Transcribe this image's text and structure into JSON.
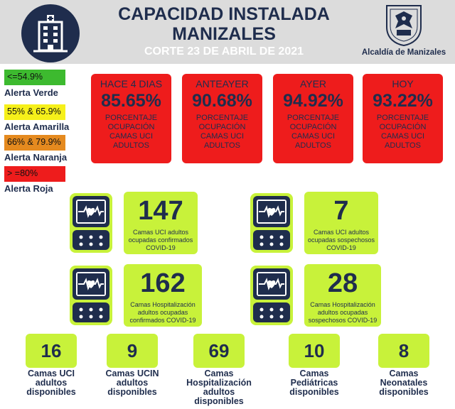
{
  "header": {
    "title_line1": "CAPACIDAD INSTALADA",
    "title_line2": "MANIZALES",
    "subtitle": "CORTE 23  DE ABRIL DE 2021",
    "org": "Alcaldía de Manizales"
  },
  "legend": [
    {
      "range": "<=54.9%",
      "label": "Alerta Verde",
      "color": "#3dba2f"
    },
    {
      "range": "55% & 65.9%",
      "label": "Alerta Amarilla",
      "color": "#f6f01a"
    },
    {
      "range": "66% & 79.9%",
      "label": "Alerta Naranja",
      "color": "#e58a1f"
    },
    {
      "range": "> =80%",
      "label": "Alerta Roja",
      "color": "#ee1c1c"
    }
  ],
  "occupancy": [
    {
      "period": "HACE 4 DIAS",
      "value": "85.65%",
      "line1": "PORCENTAJE",
      "line2": "OCUPACIÓN",
      "line3": "CAMAS UCI",
      "line4": "ADULTOS"
    },
    {
      "period": "ANTEAYER",
      "value": "90.68%",
      "line1": "PORCENTAJE",
      "line2": "OCUPACIÓN",
      "line3": "CAMAS UCI",
      "line4": "ADULTOS"
    },
    {
      "period": "AYER",
      "value": "94.92%",
      "line1": "PORCENTAJE",
      "line2": "OCUPACIÓN",
      "line3": "CAMAS UCI",
      "line4": "ADULTOS"
    },
    {
      "period": "HOY",
      "value": "93.22%",
      "line1": "PORCENTAJE",
      "line2": "OCUPACIÓN",
      "line3": "CAMAS UCI",
      "line4": "ADULTOS"
    }
  ],
  "stats": [
    {
      "value": "147",
      "line1": "Camas UCI adultos",
      "line2": "ocupadas confirmados",
      "line3": "COVID-19"
    },
    {
      "value": "7",
      "line1": "Camas UCI adultos",
      "line2": "ocupadas sospechosos",
      "line3": "COVID-19"
    },
    {
      "value": "162",
      "line1": "Camas  Hospitalización",
      "line2": "adultos ocupadas",
      "line3": "confirmados COVID-19"
    },
    {
      "value": "28",
      "line1": "Camas  Hospitalización",
      "line2": "adultos ocupadas",
      "line3": "sospechosos COVID-19"
    }
  ],
  "available": [
    {
      "value": "16",
      "line1": "Camas UCI",
      "line2": "adultos",
      "line3": "disponibles"
    },
    {
      "value": "9",
      "line1": "Camas UCIN",
      "line2": "adultos",
      "line3": "disponibles"
    },
    {
      "value": "69",
      "line1": "Camas",
      "line2": "Hospitalización",
      "line3": "adultos",
      "line4": "disponibles"
    },
    {
      "value": "10",
      "line1": "Camas",
      "line2": "Pediátricas",
      "line3": "disponibles"
    },
    {
      "value": "8",
      "line1": "Camas",
      "line2": "Neonatales",
      "line3": "disponibles"
    }
  ],
  "colors": {
    "navy": "#1f2d4d",
    "red": "#ee1c1c",
    "lime": "#c8f23a",
    "header_bg": "#dcdcdc"
  },
  "icons": {
    "logo": "hospital-building-icon",
    "shield": "manizales-coat-of-arms",
    "monitor": "heart-monitor-icon"
  }
}
